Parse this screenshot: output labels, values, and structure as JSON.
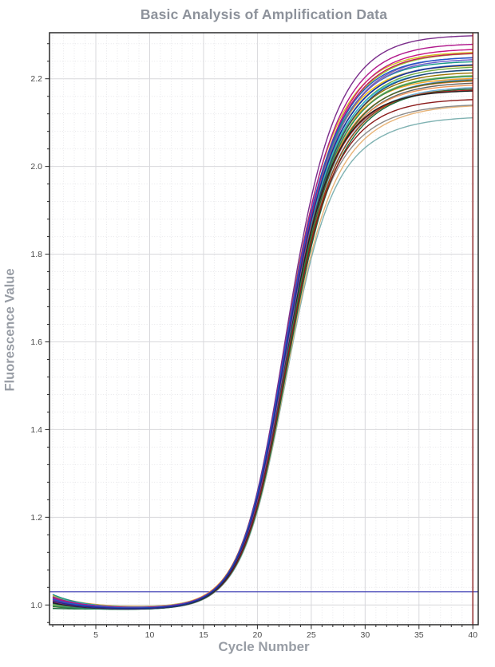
{
  "chart_data": {
    "type": "line",
    "title": "Basic Analysis of Amplification Data",
    "xlabel": "Cycle Number",
    "ylabel": "Fluorescence Value",
    "xlim": [
      0.7,
      40.5
    ],
    "ylim": [
      0.955,
      2.305
    ],
    "x_ticks_major": [
      5,
      10,
      15,
      20,
      25,
      30,
      35,
      40
    ],
    "x_minor_step": 1,
    "y_ticks_major": [
      1.0,
      1.2,
      1.4,
      1.6,
      1.8,
      2.0,
      2.2
    ],
    "y_minor_step": 0.04,
    "grid": {
      "major_color": "#d8d8dc",
      "minor_color": "#e7e7ea",
      "minor_style": "dotted"
    },
    "legend": "none",
    "threshold_line": {
      "orientation": "horizontal",
      "value": 1.03,
      "color": "#4848b8"
    },
    "end_marker_line": {
      "orientation": "vertical",
      "cycle": 40,
      "color": "#8b1e1e"
    },
    "cycle_range": [
      1,
      40
    ],
    "model": "value(c) = baseline + (start_value-baseline)*exp(-(c-1)/3) + rise_amplitude/(1+exp(-(c-rise_midpoint_cycle)/rise_slope)) + plateau_amplitude/(1+exp(-(c-plateau_midpoint_cycle)/plateau_slope))",
    "series": [
      {
        "id": "curve-01",
        "color": "#7fb2b2",
        "start_value": 1.02,
        "baseline": 0.99,
        "rise_amplitude": 0.99,
        "rise_midpoint_cycle": 22.6,
        "rise_slope": 2.0,
        "plateau_amplitude": 0.135,
        "plateau_midpoint_cycle": 28.0,
        "plateau_slope": 3.4,
        "final_value": 2.12
      },
      {
        "id": "curve-02",
        "color": "#e8b478",
        "start_value": 1.012,
        "baseline": 0.992,
        "rise_amplitude": 0.99,
        "rise_midpoint_cycle": 22.6,
        "rise_slope": 2.0,
        "plateau_amplitude": 0.16,
        "plateau_midpoint_cycle": 27.8,
        "plateau_slope": 3.3,
        "final_value": 2.14
      },
      {
        "id": "curve-03",
        "color": "#8c8c8c",
        "start_value": 1.008,
        "baseline": 0.988,
        "rise_amplitude": 1.0,
        "rise_midpoint_cycle": 22.4,
        "rise_slope": 1.95,
        "plateau_amplitude": 0.155,
        "plateau_midpoint_cycle": 27.5,
        "plateau_slope": 3.2,
        "final_value": 2.14
      },
      {
        "id": "curve-04",
        "color": "#636363",
        "start_value": 1.003,
        "baseline": 0.988,
        "rise_amplitude": 1.0,
        "rise_midpoint_cycle": 22.5,
        "rise_slope": 1.97,
        "plateau_amplitude": 0.205,
        "plateau_midpoint_cycle": 26.9,
        "plateau_slope": 3.1,
        "final_value": 2.19
      },
      {
        "id": "curve-05",
        "color": "#f1975a",
        "start_value": 1.023,
        "baseline": 0.993,
        "rise_amplitude": 0.99,
        "rise_midpoint_cycle": 22.35,
        "rise_slope": 1.94,
        "plateau_amplitude": 0.205,
        "plateau_midpoint_cycle": 26.8,
        "plateau_slope": 3.05,
        "final_value": 2.19
      },
      {
        "id": "curve-06",
        "color": "#6baed6",
        "start_value": 1.021,
        "baseline": 0.993,
        "rise_amplitude": 0.99,
        "rise_midpoint_cycle": 22.5,
        "rise_slope": 1.98,
        "plateau_amplitude": 0.2,
        "plateau_midpoint_cycle": 27.0,
        "plateau_slope": 3.1,
        "final_value": 2.18
      },
      {
        "id": "curve-07",
        "color": "#698ed0",
        "start_value": 1.011,
        "baseline": 0.992,
        "rise_amplitude": 0.99,
        "rise_midpoint_cycle": 22.5,
        "rise_slope": 1.97,
        "plateau_amplitude": 0.22,
        "plateau_midpoint_cycle": 26.9,
        "plateau_slope": 3.1,
        "final_value": 2.2
      },
      {
        "id": "curve-08",
        "color": "#8cc168",
        "start_value": 1.0,
        "baseline": 0.99,
        "rise_amplitude": 0.99,
        "rise_midpoint_cycle": 22.45,
        "rise_slope": 1.96,
        "plateau_amplitude": 0.23,
        "plateau_midpoint_cycle": 26.5,
        "plateau_slope": 3.0,
        "final_value": 2.21
      },
      {
        "id": "curve-09",
        "color": "#9acd32",
        "start_value": 1.006,
        "baseline": 0.99,
        "rise_amplitude": 1.0,
        "rise_midpoint_cycle": 22.4,
        "rise_slope": 1.95,
        "plateau_amplitude": 0.27,
        "plateau_midpoint_cycle": 26.3,
        "plateau_slope": 3.0,
        "final_value": 2.26
      },
      {
        "id": "curve-10",
        "color": "#d4c21d",
        "start_value": 1.01,
        "baseline": 0.992,
        "rise_amplitude": 1.01,
        "rise_midpoint_cycle": 22.3,
        "rise_slope": 1.94,
        "plateau_amplitude": 0.26,
        "plateau_midpoint_cycle": 26.0,
        "plateau_slope": 2.9,
        "final_value": 2.26
      },
      {
        "id": "curve-11",
        "color": "#ffc000",
        "start_value": 1.013,
        "baseline": 0.992,
        "rise_amplitude": 1.0,
        "rise_midpoint_cycle": 22.3,
        "rise_slope": 1.93,
        "plateau_amplitude": 0.24,
        "plateau_midpoint_cycle": 26.2,
        "plateau_slope": 2.9,
        "final_value": 2.23
      },
      {
        "id": "curve-12",
        "color": "#f5a623",
        "start_value": 1.022,
        "baseline": 0.993,
        "rise_amplitude": 1.0,
        "rise_midpoint_cycle": 22.2,
        "rise_slope": 1.93,
        "plateau_amplitude": 0.21,
        "plateau_midpoint_cycle": 26.5,
        "plateau_slope": 3.0,
        "final_value": 2.2
      },
      {
        "id": "curve-13",
        "color": "#ed7d31",
        "start_value": 1.019,
        "baseline": 0.992,
        "rise_amplitude": 0.99,
        "rise_midpoint_cycle": 22.4,
        "rise_slope": 1.95,
        "plateau_amplitude": 0.215,
        "plateau_midpoint_cycle": 26.7,
        "plateau_slope": 3.0,
        "final_value": 2.2
      },
      {
        "id": "curve-14",
        "color": "#9e480e",
        "start_value": 1.007,
        "baseline": 0.99,
        "rise_amplitude": 1.0,
        "rise_midpoint_cycle": 22.55,
        "rise_slope": 1.98,
        "plateau_amplitude": 0.19,
        "plateau_midpoint_cycle": 27.1,
        "plateau_slope": 3.1,
        "final_value": 2.18
      },
      {
        "id": "curve-15",
        "color": "#997300",
        "start_value": 1.009,
        "baseline": 0.991,
        "rise_amplitude": 1.0,
        "rise_midpoint_cycle": 22.4,
        "rise_slope": 1.95,
        "plateau_amplitude": 0.225,
        "plateau_midpoint_cycle": 26.6,
        "plateau_slope": 3.0,
        "final_value": 2.22
      },
      {
        "id": "curve-16",
        "color": "#43682b",
        "start_value": 0.996,
        "baseline": 0.989,
        "rise_amplitude": 1.0,
        "rise_midpoint_cycle": 22.55,
        "rise_slope": 1.98,
        "plateau_amplitude": 0.21,
        "plateau_midpoint_cycle": 26.8,
        "plateau_slope": 3.05,
        "final_value": 2.2
      },
      {
        "id": "curve-17",
        "color": "#1a6b3c",
        "start_value": 0.992,
        "baseline": 0.99,
        "rise_amplitude": 0.99,
        "rise_midpoint_cycle": 22.6,
        "rise_slope": 2.0,
        "plateau_amplitude": 0.2,
        "plateau_midpoint_cycle": 27.2,
        "plateau_slope": 3.1,
        "final_value": 2.18
      },
      {
        "id": "curve-18",
        "color": "#70ad47",
        "start_value": 1.002,
        "baseline": 0.989,
        "rise_amplitude": 1.0,
        "rise_midpoint_cycle": 22.5,
        "rise_slope": 1.96,
        "plateau_amplitude": 0.24,
        "plateau_midpoint_cycle": 26.6,
        "plateau_slope": 3.0,
        "final_value": 2.23
      },
      {
        "id": "curve-19",
        "color": "#2e8b57",
        "start_value": 0.998,
        "baseline": 0.988,
        "rise_amplitude": 1.0,
        "rise_midpoint_cycle": 22.5,
        "rise_slope": 1.97,
        "plateau_amplitude": 0.22,
        "plateau_midpoint_cycle": 26.6,
        "plateau_slope": 3.0,
        "final_value": 2.21
      },
      {
        "id": "curve-20",
        "color": "#18988b",
        "start_value": 1.024,
        "baseline": 0.991,
        "rise_amplitude": 1.0,
        "rise_midpoint_cycle": 22.3,
        "rise_slope": 1.94,
        "plateau_amplitude": 0.25,
        "plateau_midpoint_cycle": 26.2,
        "plateau_slope": 2.9,
        "final_value": 2.24
      },
      {
        "id": "curve-21",
        "color": "#29b6d6",
        "start_value": 1.019,
        "baseline": 0.992,
        "rise_amplitude": 1.0,
        "rise_midpoint_cycle": 22.4,
        "rise_slope": 1.96,
        "plateau_amplitude": 0.23,
        "plateau_midpoint_cycle": 26.4,
        "plateau_slope": 3.0,
        "final_value": 2.22
      },
      {
        "id": "curve-22",
        "color": "#4472c4",
        "start_value": 1.015,
        "baseline": 0.99,
        "rise_amplitude": 1.0,
        "rise_midpoint_cycle": 22.35,
        "rise_slope": 1.94,
        "plateau_amplitude": 0.245,
        "plateau_midpoint_cycle": 26.5,
        "plateau_slope": 3.0,
        "final_value": 2.24
      },
      {
        "id": "curve-23",
        "color": "#264478",
        "start_value": 1.004,
        "baseline": 0.988,
        "rise_amplitude": 1.0,
        "rise_midpoint_cycle": 22.45,
        "rise_slope": 1.97,
        "plateau_amplitude": 0.235,
        "plateau_midpoint_cycle": 26.7,
        "plateau_slope": 3.0,
        "final_value": 2.22
      },
      {
        "id": "curve-24",
        "color": "#8b1a1a",
        "start_value": 1.015,
        "baseline": 0.99,
        "rise_amplitude": 1.0,
        "rise_midpoint_cycle": 22.5,
        "rise_slope": 1.98,
        "plateau_amplitude": 0.165,
        "plateau_midpoint_cycle": 27.0,
        "plateau_slope": 3.1,
        "final_value": 2.16
      },
      {
        "id": "curve-25",
        "color": "#cc2222",
        "start_value": 1.018,
        "baseline": 0.991,
        "rise_amplitude": 1.0,
        "rise_midpoint_cycle": 22.3,
        "rise_slope": 1.95,
        "plateau_amplitude": 0.185,
        "plateau_midpoint_cycle": 26.8,
        "plateau_slope": 3.0,
        "final_value": 2.18
      },
      {
        "id": "curve-26",
        "color": "#222222",
        "start_value": 1.005,
        "baseline": 0.989,
        "rise_amplitude": 1.01,
        "rise_midpoint_cycle": 22.4,
        "rise_slope": 1.96,
        "plateau_amplitude": 0.175,
        "plateau_midpoint_cycle": 26.5,
        "plateau_slope": 3.0,
        "final_value": 2.17
      },
      {
        "id": "curve-27",
        "color": "#6a5acd",
        "start_value": 1.016,
        "baseline": 0.991,
        "rise_amplitude": 1.0,
        "rise_midpoint_cycle": 22.4,
        "rise_slope": 1.95,
        "plateau_amplitude": 0.255,
        "plateau_midpoint_cycle": 26.4,
        "plateau_slope": 2.95,
        "final_value": 2.25
      },
      {
        "id": "curve-28",
        "color": "#8064a2",
        "start_value": 1.01,
        "baseline": 0.991,
        "rise_amplitude": 1.0,
        "rise_midpoint_cycle": 22.5,
        "rise_slope": 1.97,
        "plateau_amplitude": 0.26,
        "plateau_midpoint_cycle": 26.3,
        "plateau_slope": 3.0,
        "final_value": 2.25
      },
      {
        "id": "curve-29",
        "color": "#c71585",
        "start_value": 1.008,
        "baseline": 0.989,
        "rise_amplitude": 1.0,
        "rise_midpoint_cycle": 22.45,
        "rise_slope": 1.96,
        "plateau_amplitude": 0.28,
        "plateau_midpoint_cycle": 26.1,
        "plateau_slope": 2.9,
        "final_value": 2.27
      },
      {
        "id": "curve-30",
        "color": "#c2185b",
        "start_value": 1.012,
        "baseline": 0.99,
        "rise_amplitude": 1.0,
        "rise_midpoint_cycle": 22.4,
        "rise_slope": 1.95,
        "plateau_amplitude": 0.27,
        "plateau_midpoint_cycle": 26.2,
        "plateau_slope": 2.9,
        "final_value": 2.26
      },
      {
        "id": "curve-31",
        "color": "#b0188c",
        "start_value": 1.017,
        "baseline": 0.991,
        "rise_amplitude": 1.0,
        "rise_midpoint_cycle": 22.35,
        "rise_slope": 1.94,
        "plateau_amplitude": 0.29,
        "plateau_midpoint_cycle": 26.0,
        "plateau_slope": 2.9,
        "final_value": 2.28
      },
      {
        "id": "curve-32",
        "color": "#7b2d8b",
        "start_value": 1.014,
        "baseline": 0.99,
        "rise_amplitude": 1.01,
        "rise_midpoint_cycle": 22.3,
        "rise_slope": 1.93,
        "plateau_amplitude": 0.3,
        "plateau_midpoint_cycle": 25.8,
        "plateau_slope": 2.8,
        "final_value": 2.3
      },
      {
        "id": "curve-33",
        "color": "#2255cc",
        "start_value": 1.013,
        "baseline": 0.99,
        "rise_amplitude": 1.01,
        "rise_midpoint_cycle": 22.3,
        "rise_slope": 1.94,
        "plateau_amplitude": 0.25,
        "plateau_midpoint_cycle": 26.3,
        "plateau_slope": 2.9,
        "final_value": 2.25
      },
      {
        "id": "curve-34",
        "color": "#1a2f8f",
        "start_value": 1.009,
        "baseline": 0.989,
        "rise_amplitude": 1.0,
        "rise_midpoint_cycle": 22.35,
        "rise_slope": 1.95,
        "plateau_amplitude": 0.245,
        "plateau_midpoint_cycle": 26.5,
        "plateau_slope": 3.0,
        "final_value": 2.23
      }
    ]
  },
  "style": {
    "frame_color": "#2a2a2a",
    "tick_color": "#2a2a2a",
    "tick_label_color": "#4a4a4a",
    "title_color": "#8d929b",
    "axis_title_color": "#989da5",
    "plot_background": "#ffffff"
  }
}
